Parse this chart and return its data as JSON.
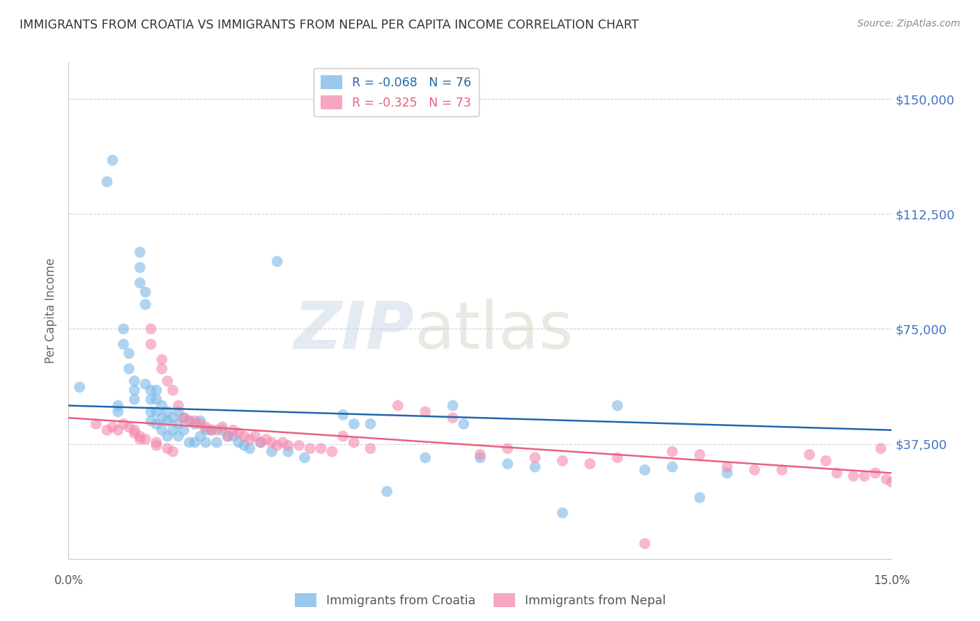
{
  "title": "IMMIGRANTS FROM CROATIA VS IMMIGRANTS FROM NEPAL PER CAPITA INCOME CORRELATION CHART",
  "source": "Source: ZipAtlas.com",
  "ylabel": "Per Capita Income",
  "yticks": [
    0,
    37500,
    75000,
    112500,
    150000
  ],
  "xlim": [
    0.0,
    0.15
  ],
  "ylim": [
    0,
    162000
  ],
  "croatia_R": -0.068,
  "croatia_N": 76,
  "nepal_R": -0.325,
  "nepal_N": 73,
  "croatia_color": "#7ab8e8",
  "nepal_color": "#f48ab0",
  "croatia_line_color": "#2166ac",
  "nepal_line_color": "#e8607a",
  "watermark_zip": "ZIP",
  "watermark_atlas": "atlas",
  "background_color": "#ffffff",
  "title_color": "#333333",
  "ytick_color": "#4472c4",
  "croatia_scatter_x": [
    0.002,
    0.007,
    0.008,
    0.009,
    0.009,
    0.01,
    0.01,
    0.011,
    0.011,
    0.012,
    0.012,
    0.012,
    0.013,
    0.013,
    0.013,
    0.014,
    0.014,
    0.014,
    0.015,
    0.015,
    0.015,
    0.015,
    0.016,
    0.016,
    0.016,
    0.016,
    0.017,
    0.017,
    0.017,
    0.018,
    0.018,
    0.018,
    0.019,
    0.019,
    0.02,
    0.02,
    0.02,
    0.021,
    0.021,
    0.022,
    0.022,
    0.023,
    0.023,
    0.024,
    0.024,
    0.025,
    0.025,
    0.026,
    0.027,
    0.028,
    0.029,
    0.03,
    0.031,
    0.032,
    0.033,
    0.035,
    0.037,
    0.038,
    0.04,
    0.043,
    0.05,
    0.052,
    0.055,
    0.058,
    0.065,
    0.07,
    0.072,
    0.075,
    0.08,
    0.085,
    0.09,
    0.1,
    0.105,
    0.11,
    0.115,
    0.12
  ],
  "croatia_scatter_y": [
    56000,
    123000,
    130000,
    48000,
    50000,
    75000,
    70000,
    67000,
    62000,
    58000,
    55000,
    52000,
    100000,
    95000,
    90000,
    87000,
    83000,
    57000,
    55000,
    52000,
    48000,
    45000,
    55000,
    52000,
    48000,
    44000,
    50000,
    46000,
    42000,
    48000,
    45000,
    40000,
    46000,
    42000,
    48000,
    44000,
    40000,
    46000,
    42000,
    45000,
    38000,
    44000,
    38000,
    45000,
    40000,
    42000,
    38000,
    42000,
    38000,
    42000,
    40000,
    40000,
    38000,
    37000,
    36000,
    38000,
    35000,
    97000,
    35000,
    33000,
    47000,
    44000,
    44000,
    22000,
    33000,
    50000,
    44000,
    33000,
    31000,
    30000,
    15000,
    50000,
    29000,
    30000,
    20000,
    28000
  ],
  "nepal_scatter_x": [
    0.005,
    0.007,
    0.008,
    0.009,
    0.01,
    0.011,
    0.012,
    0.012,
    0.013,
    0.013,
    0.014,
    0.015,
    0.015,
    0.016,
    0.016,
    0.017,
    0.017,
    0.018,
    0.018,
    0.019,
    0.019,
    0.02,
    0.021,
    0.022,
    0.023,
    0.024,
    0.025,
    0.026,
    0.027,
    0.028,
    0.029,
    0.03,
    0.031,
    0.032,
    0.033,
    0.034,
    0.035,
    0.036,
    0.037,
    0.038,
    0.039,
    0.04,
    0.042,
    0.044,
    0.046,
    0.048,
    0.05,
    0.052,
    0.055,
    0.06,
    0.065,
    0.07,
    0.075,
    0.08,
    0.085,
    0.09,
    0.095,
    0.1,
    0.105,
    0.11,
    0.115,
    0.12,
    0.125,
    0.13,
    0.135,
    0.138,
    0.14,
    0.143,
    0.145,
    0.147,
    0.148,
    0.149,
    0.15
  ],
  "nepal_scatter_y": [
    44000,
    42000,
    43000,
    42000,
    44000,
    43000,
    42000,
    41000,
    40000,
    39000,
    39000,
    75000,
    70000,
    38000,
    37000,
    65000,
    62000,
    58000,
    36000,
    35000,
    55000,
    50000,
    46000,
    45000,
    45000,
    44000,
    43000,
    42000,
    42000,
    43000,
    40000,
    42000,
    41000,
    40000,
    39000,
    40000,
    38000,
    39000,
    38000,
    37000,
    38000,
    37000,
    37000,
    36000,
    36000,
    35000,
    40000,
    38000,
    36000,
    50000,
    48000,
    46000,
    34000,
    36000,
    33000,
    32000,
    31000,
    33000,
    5000,
    35000,
    34000,
    30000,
    29000,
    29000,
    34000,
    32000,
    28000,
    27000,
    27000,
    28000,
    36000,
    26000,
    25000
  ]
}
